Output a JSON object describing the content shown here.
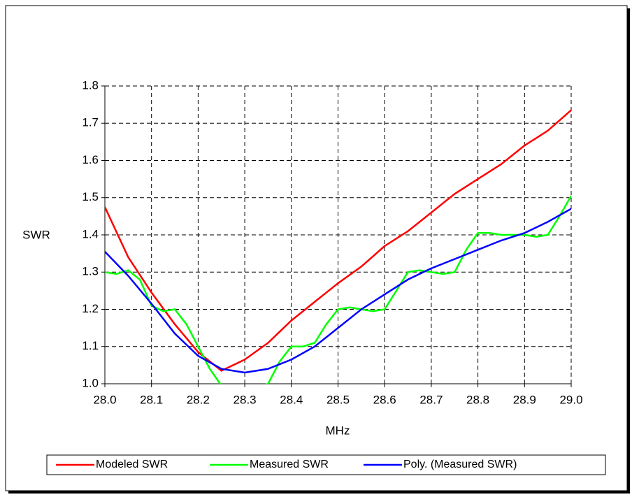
{
  "chart_data": {
    "type": "line",
    "x_label": "MHz",
    "y_label": "SWR",
    "xlim": [
      28.0,
      29.0
    ],
    "ylim": [
      1.0,
      1.8
    ],
    "xticks": [
      {
        "value": 28.0,
        "label": "28.0"
      },
      28.1,
      28.2,
      28.3,
      28.4,
      28.5,
      28.6,
      28.7,
      28.8,
      28.9,
      {
        "value": 29.0,
        "label": "29.0"
      }
    ],
    "yticks": [
      {
        "value": 1.0,
        "label": "1.0"
      },
      1.1,
      1.2,
      1.3,
      1.4,
      1.5,
      1.6,
      1.7,
      1.8
    ],
    "grid": true,
    "legend": "bottom",
    "series": [
      {
        "name": "Modeled SWR",
        "color": "#ff0000",
        "x": [
          28.0,
          28.05,
          28.1,
          28.15,
          28.2,
          28.25,
          28.3,
          28.35,
          28.4,
          28.45,
          28.5,
          28.55,
          28.6,
          28.65,
          28.7,
          28.75,
          28.8,
          28.85,
          28.9,
          28.95,
          29.0
        ],
        "values": [
          1.475,
          1.34,
          1.245,
          1.16,
          1.085,
          1.035,
          1.065,
          1.11,
          1.17,
          1.22,
          1.27,
          1.315,
          1.37,
          1.41,
          1.46,
          1.51,
          1.55,
          1.59,
          1.64,
          1.68,
          1.735
        ]
      },
      {
        "name": "Measured SWR",
        "color": "#00ff00",
        "x": [
          28.0,
          28.025,
          28.05,
          28.075,
          28.1,
          28.125,
          28.15,
          28.175,
          28.2,
          28.225,
          28.25,
          28.275,
          28.3,
          28.325,
          28.35,
          28.375,
          28.4,
          28.425,
          28.45,
          28.475,
          28.5,
          28.525,
          28.55,
          28.575,
          28.6,
          28.625,
          28.65,
          28.675,
          28.7,
          28.725,
          28.75,
          28.775,
          28.8,
          28.825,
          28.85,
          28.875,
          28.9,
          28.925,
          28.95,
          28.975,
          29.0
        ],
        "values": [
          1.3,
          1.295,
          1.305,
          1.28,
          1.21,
          1.195,
          1.2,
          1.16,
          1.1,
          1.04,
          0.995,
          0.99,
          0.998,
          0.99,
          1.0,
          1.06,
          1.1,
          1.1,
          1.11,
          1.16,
          1.2,
          1.205,
          1.2,
          1.195,
          1.2,
          1.25,
          1.3,
          1.305,
          1.3,
          1.295,
          1.3,
          1.36,
          1.405,
          1.405,
          1.4,
          1.4,
          1.4,
          1.395,
          1.4,
          1.45,
          1.505
        ]
      },
      {
        "name": "Poly. (Measured SWR)",
        "color": "#0000ff",
        "x": [
          28.0,
          28.05,
          28.1,
          28.15,
          28.2,
          28.25,
          28.3,
          28.35,
          28.4,
          28.45,
          28.5,
          28.55,
          28.6,
          28.65,
          28.7,
          28.75,
          28.8,
          28.85,
          28.9,
          28.95,
          29.0
        ],
        "values": [
          1.355,
          1.29,
          1.215,
          1.135,
          1.075,
          1.04,
          1.03,
          1.04,
          1.065,
          1.1,
          1.15,
          1.2,
          1.24,
          1.28,
          1.31,
          1.335,
          1.36,
          1.385,
          1.405,
          1.435,
          1.47
        ]
      }
    ]
  }
}
